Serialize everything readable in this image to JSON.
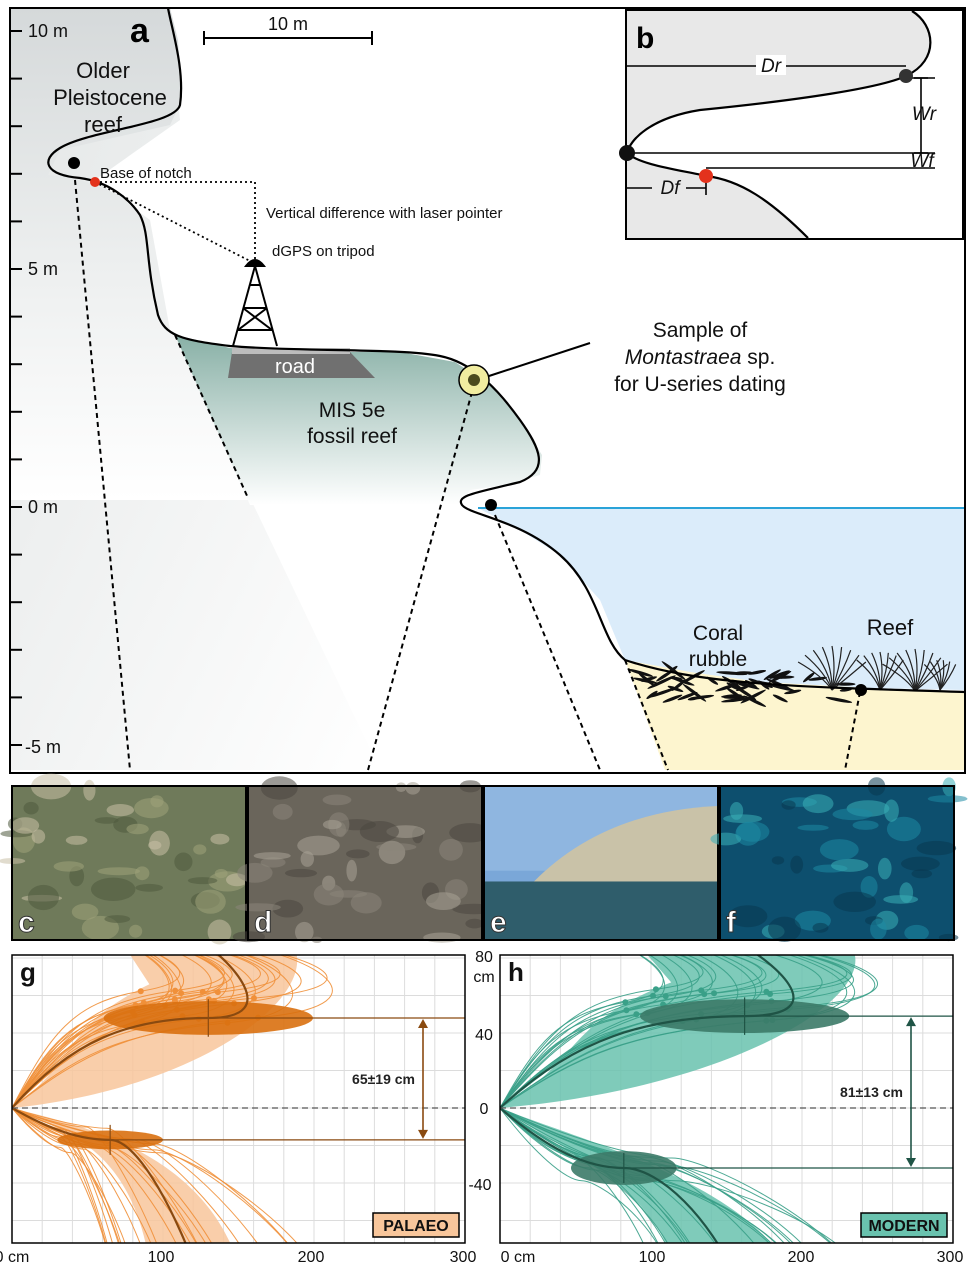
{
  "panel_a": {
    "letter": "a",
    "scale_bar": "10 m",
    "y_ticks": [
      "10 m",
      "5 m",
      "0 m",
      "-5 m"
    ],
    "labels": {
      "older_reef": [
        "Older",
        "Pleistocene",
        "reef"
      ],
      "base_of_notch": "Base of notch",
      "vertical_difference": "Vertical difference with laser pointer",
      "dgps": "dGPS on tripod",
      "road": "road",
      "fossil_reef": [
        "MIS 5e",
        "fossil reef"
      ],
      "sample": [
        "Sample of",
        "Montastraea",
        " sp.",
        "for U-series dating"
      ],
      "coral_rubble": [
        "Coral",
        "rubble"
      ],
      "reef": "Reef"
    }
  },
  "panel_b": {
    "letter": "b",
    "labels": {
      "dr": "Dr",
      "wr": "Wr",
      "wf": "Wf",
      "df": "Df"
    }
  },
  "photos": [
    {
      "letter": "c",
      "colors": [
        "#6f7a5a",
        "#9fa27a",
        "#4f5a3e",
        "#c9c0a6"
      ]
    },
    {
      "letter": "d",
      "colors": [
        "#6a655b",
        "#8a857a",
        "#4b4740",
        "#a7a295"
      ]
    },
    {
      "letter": "e",
      "colors": [
        "#7aa7d8",
        "#c9c2a8",
        "#4d6a77",
        "#2f5d6b"
      ]
    },
    {
      "letter": "f",
      "colors": [
        "#0d4f6e",
        "#1d8aa4",
        "#3ab0b8",
        "#0a3850"
      ]
    }
  ],
  "panel_g": {
    "letter": "g",
    "badge": "PALAEO",
    "measurement": "65±19 cm",
    "color": "#f0903a",
    "fill_light": "#f8c69b",
    "ellipse": "#d9700f",
    "dark": "#8a4a10"
  },
  "panel_h": {
    "letter": "h",
    "badge": "MODERN",
    "measurement": "81±13 cm",
    "color": "#3aa088",
    "fill_light": "#69c2ae",
    "ellipse": "#3c7a68",
    "dark": "#1f5446"
  },
  "profile_axes": {
    "x_ticks": [
      "0 cm",
      "100",
      "200",
      "300"
    ],
    "y_ticks": [
      "80",
      "cm",
      "40",
      "0",
      "-40"
    ]
  },
  "chart_data": [
    {
      "type": "line",
      "panel": "g",
      "xlim": [
        0,
        300
      ],
      "ylim": [
        -80,
        80
      ],
      "upper_lip_point": {
        "x": 130,
        "y": 48
      },
      "lower_floor_point": {
        "x": 65,
        "y": -17
      },
      "width": "65±19 cm"
    },
    {
      "type": "line",
      "panel": "h",
      "xlim": [
        0,
        300
      ],
      "ylim": [
        -80,
        80
      ],
      "upper_lip_point": {
        "x": 162,
        "y": 49
      },
      "lower_floor_point": {
        "x": 82,
        "y": -32
      },
      "width": "81±13 cm"
    }
  ]
}
